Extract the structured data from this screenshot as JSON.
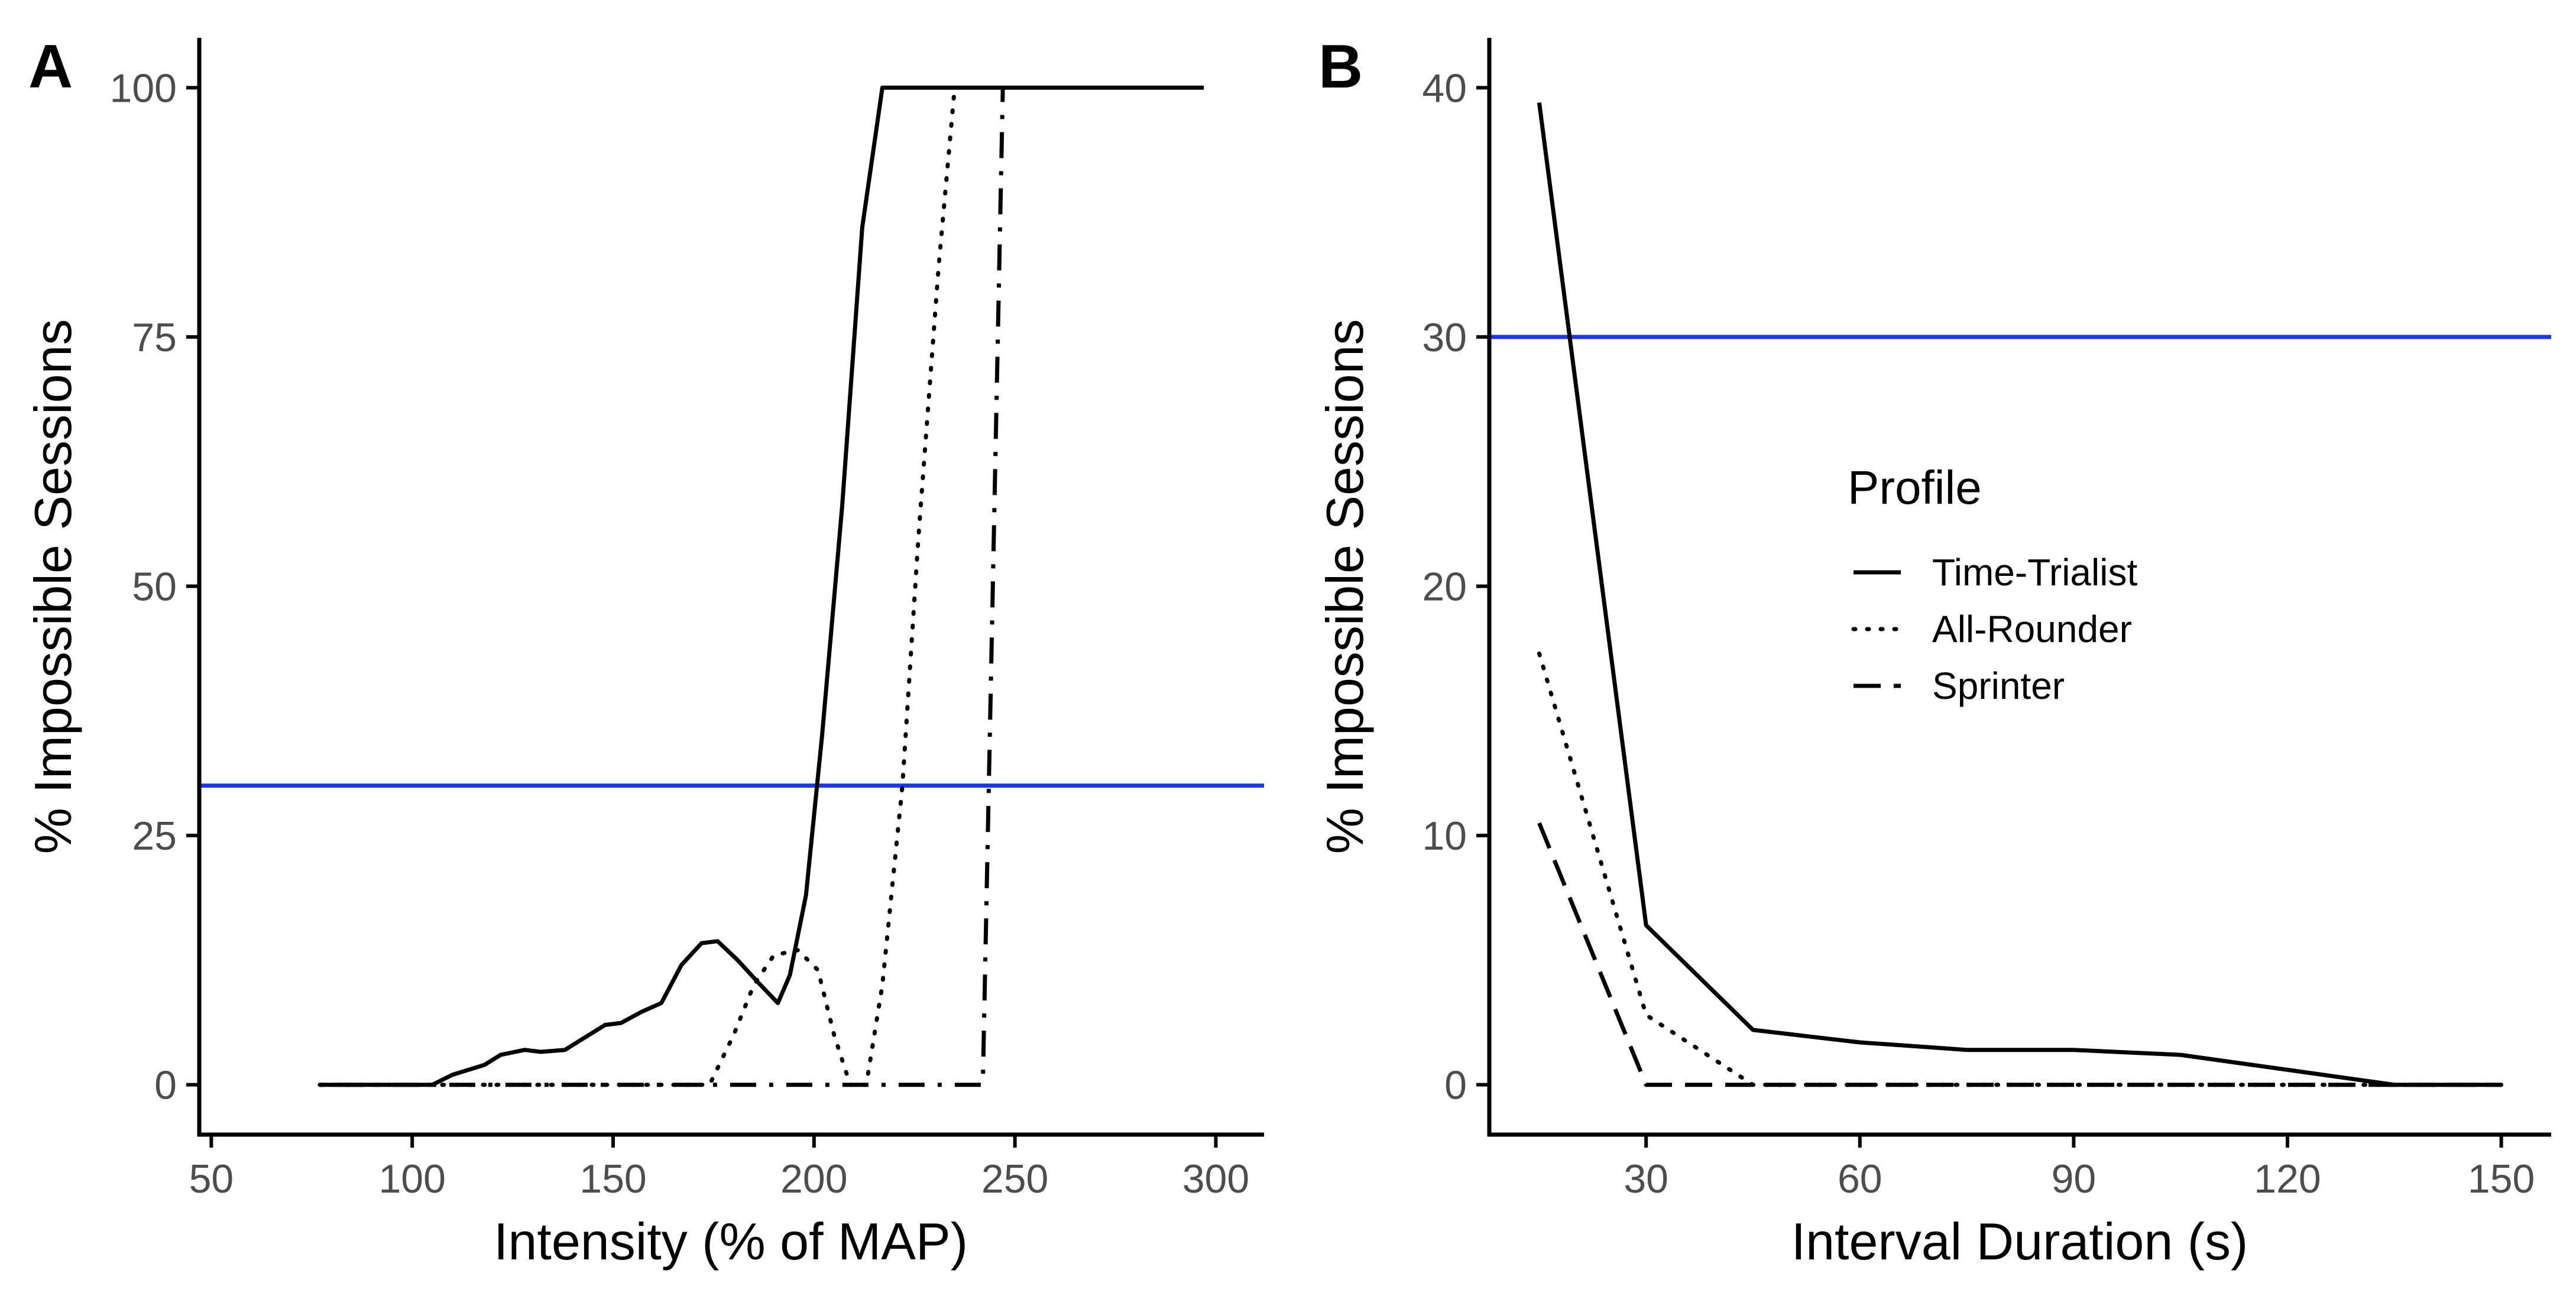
{
  "figure": {
    "ref_color": "#1f35e8",
    "line_color": "#000000",
    "tick_color": "#4d4d4d"
  },
  "legend": {
    "title": "Profile",
    "items": [
      {
        "label": "Time-Trialist",
        "style": "solid"
      },
      {
        "label": "All-Rounder",
        "style": "dotted"
      },
      {
        "label": "Sprinter",
        "style": "dashed"
      }
    ]
  },
  "chart_data": [
    {
      "panel": "A",
      "type": "line",
      "title": "",
      "xlabel": "Intensity (% of MAP)",
      "ylabel": "% Impossible Sessions",
      "xlim": [
        47,
        312
      ],
      "ylim": [
        -5,
        105
      ],
      "xticks": [
        50,
        100,
        150,
        200,
        250,
        300
      ],
      "yticks": [
        0,
        25,
        50,
        75,
        100
      ],
      "reference_line": 30,
      "grid": false,
      "series": [
        {
          "name": "Time-Trialist",
          "style": "solid",
          "x": [
            77,
            105,
            110,
            118,
            122,
            128,
            132,
            138,
            142,
            148,
            152,
            157,
            162,
            167,
            172,
            176,
            181,
            186,
            191,
            194,
            198,
            202,
            207,
            212,
            217,
            297
          ],
          "y": [
            0,
            0,
            1,
            2,
            3,
            3.5,
            3.3,
            3.5,
            4.5,
            6,
            6.2,
            7.3,
            8.2,
            12,
            14.2,
            14.4,
            12.5,
            10.3,
            8.2,
            11,
            19,
            35,
            58,
            86,
            100,
            100
          ]
        },
        {
          "name": "All-Rounder",
          "style": "dotted",
          "x": [
            77,
            174,
            180,
            185,
            190,
            196,
            201,
            205,
            209,
            213,
            217,
            222,
            226,
            231,
            235
          ],
          "y": [
            0,
            0,
            5,
            10,
            13,
            13.5,
            11.5,
            5,
            0,
            0,
            10,
            30,
            55,
            82,
            100
          ]
        },
        {
          "name": "Sprinter",
          "style": "dashed",
          "x": [
            77,
            242,
            247
          ],
          "y": [
            0,
            0,
            100
          ]
        }
      ]
    },
    {
      "panel": "B",
      "type": "line",
      "title": "",
      "xlabel": "Interval Duration (s)",
      "ylabel": "% Impossible Sessions",
      "xlim": [
        8,
        157
      ],
      "ylim": [
        -2,
        42
      ],
      "xticks": [
        30,
        60,
        90,
        120,
        150
      ],
      "yticks": [
        0,
        10,
        20,
        30,
        40
      ],
      "reference_line": 30,
      "grid": false,
      "series": [
        {
          "name": "Time-Trialist",
          "style": "solid",
          "x": [
            15,
            30,
            45,
            60,
            75,
            90,
            105,
            120,
            135,
            150
          ],
          "y": [
            39.4,
            6.4,
            2.2,
            1.7,
            1.4,
            1.4,
            1.2,
            0.6,
            0,
            0
          ]
        },
        {
          "name": "All-Rounder",
          "style": "dotted",
          "x": [
            15,
            30,
            45,
            150
          ],
          "y": [
            17.3,
            2.8,
            0,
            0
          ]
        },
        {
          "name": "Sprinter",
          "style": "dashed",
          "x": [
            15,
            30,
            150
          ],
          "y": [
            10.5,
            0,
            0
          ]
        }
      ]
    }
  ]
}
